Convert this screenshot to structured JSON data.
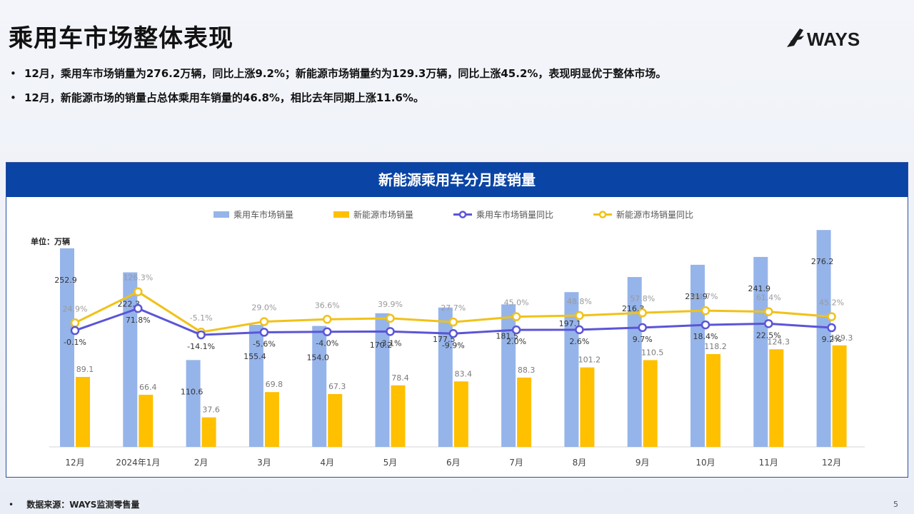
{
  "slide": {
    "title": "乘用车市场整体表现",
    "logo_text": "WAYS",
    "bullets": [
      "12月，乘用车市场销量为276.2万辆，同比上涨9.2%；新能源市场销量约为129.3万辆，同比上涨45.2%，表现明显优于整体市场。",
      "12月，新能源市场的销量占总体乘用车销量的46.8%，相比去年同期上涨11.6%。"
    ],
    "footer_source": "数据来源：WAYS监测零售量",
    "page_number": "5",
    "colors": {
      "header_bg": "#0a44a4",
      "bar_total": "#95b4ea",
      "bar_nev": "#ffc000",
      "line_total": "#5b55d6",
      "line_nev": "#f0c219"
    }
  },
  "chart_data": {
    "type": "bar",
    "title": "新能源乘用车分月度销量",
    "unit_label": "单位：万辆",
    "legend_position": "top",
    "categories": [
      "12月",
      "2024年1月",
      "2月",
      "3月",
      "4月",
      "5月",
      "6月",
      "7月",
      "8月",
      "9月",
      "10月",
      "11月",
      "12月"
    ],
    "series": [
      {
        "name": "乘用车市场销量",
        "kind": "bar",
        "values": [
          252.9,
          222.3,
          110.6,
          155.4,
          154.0,
          170.2,
          177.5,
          181.5,
          197.1,
          216.3,
          231.9,
          241.9,
          276.2
        ],
        "labels": [
          "252.9",
          "222.3",
          "110.6",
          "155.4",
          "154.0",
          "170.2",
          "177.5",
          "181.5",
          "197.1",
          "216.3",
          "231.9",
          "241.9",
          "276.2"
        ]
      },
      {
        "name": "新能源市场销量",
        "kind": "bar",
        "values": [
          89.1,
          66.4,
          37.6,
          69.8,
          67.3,
          78.4,
          83.4,
          88.3,
          101.2,
          110.5,
          118.2,
          124.3,
          129.3
        ],
        "labels": [
          "89.1",
          "66.4",
          "37.6",
          "69.8",
          "67.3",
          "78.4",
          "83.4",
          "88.3",
          "101.2",
          "110.5",
          "118.2",
          "124.3",
          "129.3"
        ]
      },
      {
        "name": "乘用车市场销量同比",
        "kind": "line",
        "values": [
          -0.1,
          71.8,
          -14.1,
          -5.6,
          -4.0,
          -3.1,
          -9.9,
          2.0,
          2.6,
          9.7,
          18.4,
          22.5,
          9.2
        ],
        "labels": [
          "-0.1%",
          "71.8%",
          "-14.1%",
          "-5.6%",
          "-4.0%",
          "-3.1%",
          "-9.9%",
          "2.0%",
          "2.6%",
          "9.7%",
          "18.4%",
          "22.5%",
          "9.2%"
        ]
      },
      {
        "name": "新能源市场销量同比",
        "kind": "line",
        "values": [
          24.9,
          126.3,
          -5.1,
          29.0,
          36.6,
          39.9,
          27.7,
          45.0,
          48.8,
          57.8,
          64.7,
          61.4,
          45.2
        ],
        "labels": [
          "24.9%",
          "126.3%",
          "-5.1%",
          "29.0%",
          "36.6%",
          "39.9%",
          "27.7%",
          "45.0%",
          "48.8%",
          "57.8%",
          "64.7%",
          "61.4%",
          "45.2%"
        ]
      }
    ]
  }
}
